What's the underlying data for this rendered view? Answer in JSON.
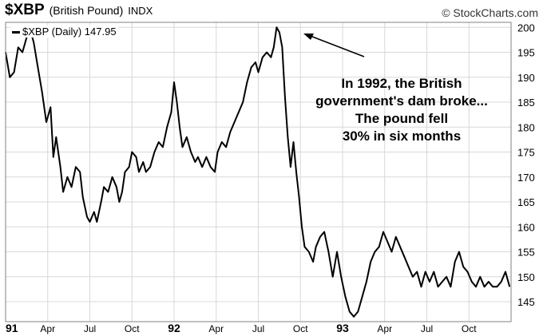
{
  "header": {
    "symbol": "$XBP",
    "name": "(British Pound)",
    "exchange": "INDX",
    "brand": "© StockCharts.com"
  },
  "legend": {
    "label": "$XBP (Daily) 147.95"
  },
  "annotation": {
    "lines": [
      "In 1992, the British",
      "government's dam broke...",
      "The pound fell",
      "30% in six months"
    ]
  },
  "colors": {
    "line": "#000000",
    "grid": "#d8d8d8",
    "axis": "#808080"
  },
  "chart_data": {
    "type": "line",
    "title": "",
    "xlabel": "",
    "ylabel": "",
    "x_ticks": [
      "91",
      "Apr",
      "Jul",
      "Oct",
      "92",
      "Apr",
      "Jul",
      "Oct",
      "93",
      "Apr",
      "Jul",
      "Oct"
    ],
    "x_tick_bold": [
      "91",
      "92",
      "93"
    ],
    "ylim": [
      141,
      201
    ],
    "yticks": [
      145,
      150,
      155,
      160,
      165,
      170,
      175,
      180,
      185,
      190,
      195,
      200
    ],
    "y_axis_side": "right",
    "grid": true,
    "legend_position": "top-left",
    "series": [
      {
        "name": "$XBP (Daily) 147.95",
        "x_unit": "months from Jan 1991",
        "points": [
          [
            0.0,
            195
          ],
          [
            0.3,
            190
          ],
          [
            0.6,
            191
          ],
          [
            0.9,
            196
          ],
          [
            1.2,
            195
          ],
          [
            1.5,
            198
          ],
          [
            1.8,
            199
          ],
          [
            2.0,
            197
          ],
          [
            2.3,
            192
          ],
          [
            2.6,
            187
          ],
          [
            2.9,
            181
          ],
          [
            3.2,
            184
          ],
          [
            3.4,
            174
          ],
          [
            3.6,
            178
          ],
          [
            3.9,
            172
          ],
          [
            4.1,
            167
          ],
          [
            4.4,
            170
          ],
          [
            4.7,
            168
          ],
          [
            5.0,
            172
          ],
          [
            5.3,
            171
          ],
          [
            5.5,
            166
          ],
          [
            5.8,
            162
          ],
          [
            6.0,
            161
          ],
          [
            6.3,
            163
          ],
          [
            6.5,
            161
          ],
          [
            6.8,
            165
          ],
          [
            7.0,
            168
          ],
          [
            7.3,
            167
          ],
          [
            7.6,
            170
          ],
          [
            7.9,
            168
          ],
          [
            8.1,
            165
          ],
          [
            8.3,
            167
          ],
          [
            8.5,
            171
          ],
          [
            8.8,
            172
          ],
          [
            9.0,
            175
          ],
          [
            9.3,
            174
          ],
          [
            9.5,
            171
          ],
          [
            9.8,
            173
          ],
          [
            10.0,
            171
          ],
          [
            10.3,
            172
          ],
          [
            10.6,
            175
          ],
          [
            10.9,
            177
          ],
          [
            11.2,
            176
          ],
          [
            11.5,
            180
          ],
          [
            11.8,
            183
          ],
          [
            12.0,
            189
          ],
          [
            12.2,
            185
          ],
          [
            12.4,
            180
          ],
          [
            12.6,
            176
          ],
          [
            12.9,
            178
          ],
          [
            13.2,
            175
          ],
          [
            13.5,
            173
          ],
          [
            13.7,
            174
          ],
          [
            14.0,
            172
          ],
          [
            14.3,
            174
          ],
          [
            14.6,
            172
          ],
          [
            14.9,
            171
          ],
          [
            15.1,
            175
          ],
          [
            15.4,
            177
          ],
          [
            15.7,
            176
          ],
          [
            16.0,
            179
          ],
          [
            16.3,
            181
          ],
          [
            16.6,
            183
          ],
          [
            16.9,
            185
          ],
          [
            17.2,
            189
          ],
          [
            17.5,
            192
          ],
          [
            17.8,
            193
          ],
          [
            18.0,
            191
          ],
          [
            18.3,
            194
          ],
          [
            18.6,
            195
          ],
          [
            18.9,
            194
          ],
          [
            19.1,
            196
          ],
          [
            19.3,
            200
          ],
          [
            19.5,
            199
          ],
          [
            19.7,
            196
          ],
          [
            19.9,
            186
          ],
          [
            20.1,
            178
          ],
          [
            20.3,
            172
          ],
          [
            20.5,
            177
          ],
          [
            20.7,
            171
          ],
          [
            20.9,
            166
          ],
          [
            21.1,
            160
          ],
          [
            21.3,
            156
          ],
          [
            21.6,
            155
          ],
          [
            21.9,
            153
          ],
          [
            22.1,
            156
          ],
          [
            22.4,
            158
          ],
          [
            22.7,
            159
          ],
          [
            23.0,
            155
          ],
          [
            23.3,
            150
          ],
          [
            23.6,
            155
          ],
          [
            23.9,
            150
          ],
          [
            24.2,
            146
          ],
          [
            24.5,
            143
          ],
          [
            24.8,
            142
          ],
          [
            25.1,
            143
          ],
          [
            25.4,
            146
          ],
          [
            25.7,
            149
          ],
          [
            26.0,
            153
          ],
          [
            26.3,
            155
          ],
          [
            26.6,
            156
          ],
          [
            26.9,
            159
          ],
          [
            27.2,
            157
          ],
          [
            27.5,
            155
          ],
          [
            27.8,
            158
          ],
          [
            28.1,
            156
          ],
          [
            28.4,
            154
          ],
          [
            28.7,
            152
          ],
          [
            29.0,
            150
          ],
          [
            29.3,
            151
          ],
          [
            29.6,
            148
          ],
          [
            29.9,
            151
          ],
          [
            30.2,
            149
          ],
          [
            30.5,
            151
          ],
          [
            30.8,
            148
          ],
          [
            31.1,
            149
          ],
          [
            31.4,
            150
          ],
          [
            31.7,
            148
          ],
          [
            32.0,
            153
          ],
          [
            32.3,
            155
          ],
          [
            32.6,
            152
          ],
          [
            32.9,
            151
          ],
          [
            33.2,
            149
          ],
          [
            33.5,
            148
          ],
          [
            33.8,
            150
          ],
          [
            34.1,
            148
          ],
          [
            34.4,
            149
          ],
          [
            34.7,
            148
          ],
          [
            35.0,
            148
          ],
          [
            35.3,
            149
          ],
          [
            35.6,
            151
          ],
          [
            35.9,
            148
          ]
        ]
      }
    ]
  }
}
